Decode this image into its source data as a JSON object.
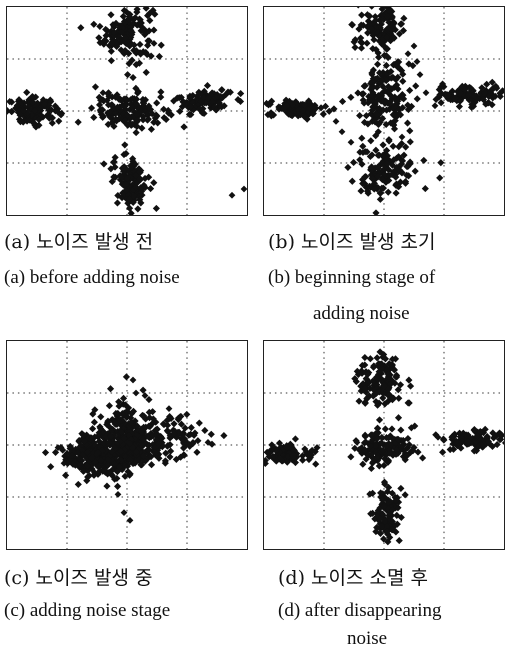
{
  "figure": {
    "panels": [
      {
        "id": "a",
        "caption_ko": "(a) 노이즈 발생 전",
        "caption_en": [
          "(a) before adding noise"
        ]
      },
      {
        "id": "b",
        "caption_ko": "(b) 노이즈 발생 초기",
        "caption_en": [
          "(b) beginning stage of",
          "adding noise"
        ]
      },
      {
        "id": "c",
        "caption_ko": "(c) 노이즈 발생 중",
        "caption_en": [
          "(c) adding noise stage"
        ]
      },
      {
        "id": "d",
        "caption_ko": "(d) 노이즈 소멸 후",
        "caption_en": [
          "(d) after disappearing",
          "noise"
        ]
      }
    ]
  },
  "chart_data": [
    {
      "type": "scatter",
      "panel": "a",
      "title": "",
      "xlabel": "",
      "ylabel": "",
      "xlim": [
        -2,
        2
      ],
      "ylim": [
        -2,
        2
      ],
      "grid": "dotted",
      "point_color": "#111111",
      "clusters": [
        {
          "cx": 0.0,
          "cy": 1.5,
          "sx": 0.22,
          "sy": 0.28,
          "n": 140
        },
        {
          "cx": -1.55,
          "cy": 0.0,
          "sx": 0.22,
          "sy": 0.12,
          "n": 110
        },
        {
          "cx": 0.05,
          "cy": 0.0,
          "sx": 0.3,
          "sy": 0.17,
          "n": 160
        },
        {
          "cx": 1.3,
          "cy": 0.2,
          "sx": 0.22,
          "sy": 0.12,
          "n": 110
        },
        {
          "cx": 0.05,
          "cy": -1.35,
          "sx": 0.15,
          "sy": 0.25,
          "n": 120
        }
      ],
      "outliers": [
        [
          1.95,
          -1.5
        ],
        [
          1.75,
          -1.62
        ],
        [
          -0.4,
          0.35
        ],
        [
          0.45,
          1.3
        ],
        [
          1.05,
          0.25
        ]
      ]
    },
    {
      "type": "scatter",
      "panel": "b",
      "title": "",
      "xlabel": "",
      "ylabel": "",
      "xlim": [
        -2,
        2
      ],
      "ylim": [
        -2,
        2
      ],
      "grid": "dotted",
      "point_color": "#111111",
      "clusters": [
        {
          "cx": -0.05,
          "cy": 1.6,
          "sx": 0.2,
          "sy": 0.2,
          "n": 120
        },
        {
          "cx": -1.45,
          "cy": 0.05,
          "sx": 0.25,
          "sy": 0.08,
          "n": 100
        },
        {
          "cx": 0.0,
          "cy": 0.25,
          "sx": 0.22,
          "sy": 0.4,
          "n": 170
        },
        {
          "cx": 1.4,
          "cy": 0.3,
          "sx": 0.3,
          "sy": 0.1,
          "n": 120
        },
        {
          "cx": 0.0,
          "cy": -1.15,
          "sx": 0.25,
          "sy": 0.25,
          "n": 140
        }
      ],
      "outliers": [
        [
          0.55,
          0.95
        ],
        [
          0.6,
          0.7
        ],
        [
          0.4,
          1.1
        ],
        [
          -0.7,
          -0.4
        ],
        [
          -0.55,
          -0.6
        ],
        [
          -0.35,
          -0.8
        ],
        [
          0.85,
          0.1
        ],
        [
          0.7,
          0.35
        ],
        [
          -0.2,
          0.7
        ],
        [
          0.3,
          -0.5
        ],
        [
          -0.8,
          -0.2
        ],
        [
          0.5,
          1.25
        ]
      ]
    },
    {
      "type": "scatter",
      "panel": "c",
      "title": "",
      "xlabel": "",
      "ylabel": "",
      "xlim": [
        -2,
        2
      ],
      "ylim": [
        -2,
        2
      ],
      "grid": "dotted",
      "point_color": "#111111",
      "clusters": [
        {
          "cx": -0.25,
          "cy": -0.15,
          "sx": 0.35,
          "sy": 0.2,
          "n": 260
        },
        {
          "cx": -0.05,
          "cy": 0.2,
          "sx": 0.18,
          "sy": 0.35,
          "n": 160
        },
        {
          "cx": 0.45,
          "cy": 0.15,
          "sx": 0.4,
          "sy": 0.22,
          "n": 180
        },
        {
          "cx": -0.65,
          "cy": -0.25,
          "sx": 0.25,
          "sy": 0.18,
          "n": 120
        }
      ],
      "outliers": [
        [
          0.1,
          1.25
        ],
        [
          0.15,
          1.0
        ],
        [
          0.3,
          0.95
        ],
        [
          0.9,
          0.55
        ],
        [
          1.1,
          0.05
        ],
        [
          1.35,
          0.05
        ],
        [
          -0.15,
          -0.95
        ],
        [
          -0.05,
          -1.3
        ],
        [
          0.05,
          -1.45
        ],
        [
          -1.15,
          -0.05
        ],
        [
          -1.05,
          -0.35
        ],
        [
          0.7,
          0.7
        ]
      ]
    },
    {
      "type": "scatter",
      "panel": "d",
      "title": "",
      "xlabel": "",
      "ylabel": "",
      "xlim": [
        -2,
        2
      ],
      "ylim": [
        -2,
        2
      ],
      "grid": "dotted",
      "point_color": "#111111",
      "clusters": [
        {
          "cx": -0.05,
          "cy": 1.2,
          "sx": 0.2,
          "sy": 0.28,
          "n": 130
        },
        {
          "cx": -1.6,
          "cy": -0.15,
          "sx": 0.22,
          "sy": 0.1,
          "n": 100
        },
        {
          "cx": 0.0,
          "cy": -0.05,
          "sx": 0.25,
          "sy": 0.18,
          "n": 150
        },
        {
          "cx": 1.45,
          "cy": 0.1,
          "sx": 0.25,
          "sy": 0.1,
          "n": 110
        },
        {
          "cx": 0.05,
          "cy": -1.3,
          "sx": 0.12,
          "sy": 0.25,
          "n": 100
        }
      ],
      "outliers": [
        [
          -0.2,
          0.2
        ],
        [
          0.9,
          0.15
        ],
        [
          -0.45,
          0.05
        ]
      ]
    }
  ]
}
